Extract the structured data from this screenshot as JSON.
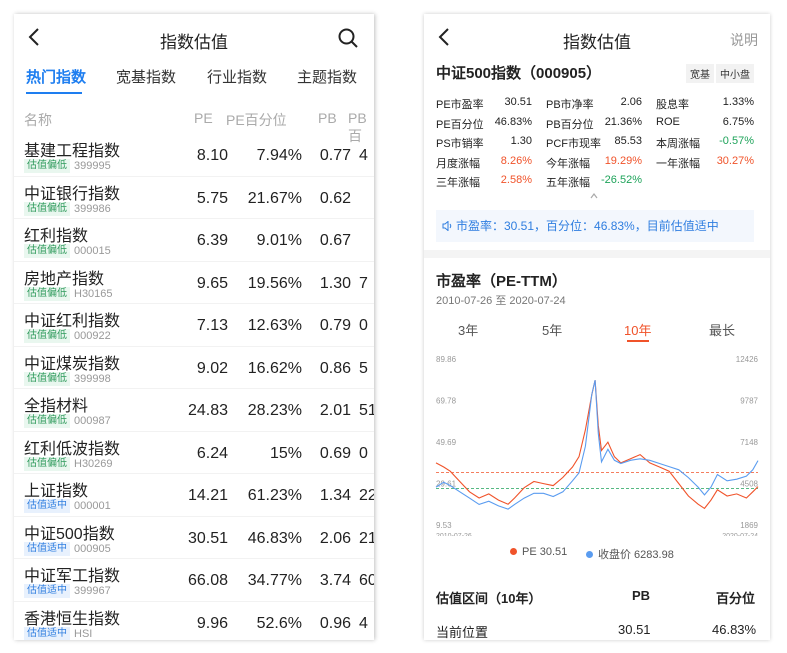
{
  "left": {
    "title": "指数估值",
    "tabs": [
      "热门指数",
      "宽基指数",
      "行业指数",
      "主题指数"
    ],
    "columns": [
      "名称",
      "PE",
      "PE百分位",
      "PB",
      "PB百"
    ],
    "rows": [
      {
        "name": "基建工程指数",
        "badge": "估值偏低",
        "level": "low",
        "code": "399995",
        "pe": "8.10",
        "pe_pct": "7.94%",
        "pb": "0.77",
        "pb_pct": "4"
      },
      {
        "name": "中证银行指数",
        "badge": "估值偏低",
        "level": "low",
        "code": "399986",
        "pe": "5.75",
        "pe_pct": "21.67%",
        "pb": "0.62",
        "pb_pct": ""
      },
      {
        "name": "红利指数",
        "badge": "估值偏低",
        "level": "low",
        "code": "000015",
        "pe": "6.39",
        "pe_pct": "9.01%",
        "pb": "0.67",
        "pb_pct": ""
      },
      {
        "name": "房地产指数",
        "badge": "估值偏低",
        "level": "low",
        "code": "H30165",
        "pe": "9.65",
        "pe_pct": "19.56%",
        "pb": "1.30",
        "pb_pct": "7"
      },
      {
        "name": "中证红利指数",
        "badge": "估值偏低",
        "level": "low",
        "code": "000922",
        "pe": "7.13",
        "pe_pct": "12.63%",
        "pb": "0.79",
        "pb_pct": "0"
      },
      {
        "name": "中证煤炭指数",
        "badge": "估值偏低",
        "level": "low",
        "code": "399998",
        "pe": "9.02",
        "pe_pct": "16.62%",
        "pb": "0.86",
        "pb_pct": "5"
      },
      {
        "name": "全指材料",
        "badge": "估值偏低",
        "level": "low",
        "code": "000987",
        "pe": "24.83",
        "pe_pct": "28.23%",
        "pb": "2.01",
        "pb_pct": "51"
      },
      {
        "name": "红利低波指数",
        "badge": "估值偏低",
        "level": "low",
        "code": "H30269",
        "pe": "6.24",
        "pe_pct": "15%",
        "pb": "0.69",
        "pb_pct": "0"
      },
      {
        "name": "上证指数",
        "badge": "估值适中",
        "level": "mid",
        "code": "000001",
        "pe": "14.21",
        "pe_pct": "61.23%",
        "pb": "1.34",
        "pb_pct": "22"
      },
      {
        "name": "中证500指数",
        "badge": "估值适中",
        "level": "mid",
        "code": "000905",
        "pe": "30.51",
        "pe_pct": "46.83%",
        "pb": "2.06",
        "pb_pct": "21"
      },
      {
        "name": "中证军工指数",
        "badge": "估值适中",
        "level": "mid",
        "code": "399967",
        "pe": "66.08",
        "pe_pct": "34.77%",
        "pb": "3.74",
        "pb_pct": "60"
      },
      {
        "name": "香港恒生指数",
        "badge": "估值适中",
        "level": "mid",
        "code": "HSI",
        "pe": "9.96",
        "pe_pct": "52.6%",
        "pb": "0.96",
        "pb_pct": "4"
      }
    ]
  },
  "right": {
    "title": "指数估值",
    "help": "说明",
    "stock_name": "中证500指数（000905）",
    "tags": [
      "宽基",
      "中小盘"
    ],
    "metrics": [
      [
        {
          "l": "PE市盈率",
          "v": "30.51",
          "c": ""
        },
        {
          "l": "PB市净率",
          "v": "2.06",
          "c": ""
        },
        {
          "l": "股息率",
          "v": "1.33%",
          "c": ""
        }
      ],
      [
        {
          "l": "PE百分位",
          "v": "46.83%",
          "c": ""
        },
        {
          "l": "PB百分位",
          "v": "21.36%",
          "c": ""
        },
        {
          "l": "ROE",
          "v": "6.75%",
          "c": ""
        }
      ],
      [
        {
          "l": "PS市销率",
          "v": "1.30",
          "c": ""
        },
        {
          "l": "PCF市现率",
          "v": "85.53",
          "c": ""
        },
        {
          "l": "本周涨幅",
          "v": "-0.57%",
          "c": "green"
        }
      ],
      [
        {
          "l": "月度涨幅",
          "v": "8.26%",
          "c": "red"
        },
        {
          "l": "今年涨幅",
          "v": "19.29%",
          "c": "red"
        },
        {
          "l": "一年涨幅",
          "v": "30.27%",
          "c": "red"
        }
      ],
      [
        {
          "l": "三年涨幅",
          "v": "2.58%",
          "c": "red"
        },
        {
          "l": "五年涨幅",
          "v": "-26.52%",
          "c": "green"
        },
        {
          "l": "",
          "v": "",
          "c": ""
        }
      ]
    ],
    "notice": "市盈率：30.51，百分位：46.83%，目前估值适中",
    "chart_title": "市盈率（PE-TTM）",
    "date_range": "2010-07-26 至 2020-07-24",
    "periods": [
      "3年",
      "5年",
      "10年",
      "最长"
    ],
    "legend": {
      "pe": "PE 30.51",
      "price": "收盘价 6283.98"
    },
    "table_head": [
      "估值区间（10年）",
      "PB",
      "百分位"
    ],
    "table_row": [
      "当前位置",
      "30.51",
      "46.83%"
    ]
  },
  "colors": {
    "accent": "#1e7ef0",
    "pe_line": "#f0532a",
    "price_line": "#5a9cf0",
    "low_badge": "#2e9a5b",
    "mid_badge": "#2f7ee0"
  },
  "chart_data": {
    "type": "line",
    "title": "市盈率（PE-TTM）",
    "x_start": "2010-07-26",
    "x_end": "2020-07-24",
    "y_left_ticks": [
      "89.86",
      "69.78",
      "49.69",
      "29.61",
      "9.53"
    ],
    "y_right_ticks": [
      "12426",
      "9787",
      "7148",
      "4508",
      "1869"
    ],
    "ylim_left": [
      9.53,
      89.86
    ],
    "ylim_right": [
      1869,
      12426
    ],
    "reference_lines": [
      37.3,
      29.6
    ],
    "series": [
      {
        "name": "PE",
        "axis": "left",
        "x": [
          2010.56,
          2010.8,
          2011.0,
          2011.3,
          2011.6,
          2011.9,
          2012.2,
          2012.5,
          2012.8,
          2013.0,
          2013.3,
          2013.6,
          2013.9,
          2014.2,
          2014.5,
          2014.8,
          2015.0,
          2015.2,
          2015.4,
          2015.5,
          2015.6,
          2015.7,
          2015.9,
          2016.1,
          2016.3,
          2016.6,
          2016.9,
          2017.2,
          2017.5,
          2017.8,
          2018.1,
          2018.4,
          2018.7,
          2018.9,
          2019.1,
          2019.3,
          2019.6,
          2019.9,
          2020.2,
          2020.4,
          2020.56
        ],
        "values": [
          42,
          40,
          38,
          33,
          28,
          25,
          27,
          24,
          22,
          25,
          30,
          33,
          32,
          31,
          35,
          40,
          45,
          58,
          75,
          82,
          60,
          48,
          52,
          45,
          42,
          44,
          46,
          42,
          40,
          38,
          32,
          26,
          22,
          20,
          24,
          29,
          26,
          27,
          25,
          28,
          30.51
        ]
      },
      {
        "name": "收盘价",
        "axis": "right",
        "x": [
          2010.56,
          2010.8,
          2011.0,
          2011.3,
          2011.6,
          2011.9,
          2012.2,
          2012.5,
          2012.8,
          2013.0,
          2013.3,
          2013.6,
          2013.9,
          2014.2,
          2014.5,
          2014.8,
          2015.0,
          2015.2,
          2015.4,
          2015.5,
          2015.6,
          2015.7,
          2015.9,
          2016.1,
          2016.3,
          2016.6,
          2016.9,
          2017.2,
          2017.5,
          2017.8,
          2018.1,
          2018.4,
          2018.7,
          2018.9,
          2019.1,
          2019.3,
          2019.6,
          2019.9,
          2020.2,
          2020.4,
          2020.56
        ],
        "values": [
          4600,
          4900,
          4700,
          4300,
          3900,
          3500,
          3700,
          3400,
          3200,
          3500,
          3900,
          4200,
          4200,
          4000,
          4300,
          5000,
          5500,
          7200,
          10500,
          11400,
          8000,
          6200,
          7000,
          6300,
          6100,
          6300,
          6400,
          6300,
          6100,
          5900,
          5700,
          5200,
          4600,
          4100,
          4600,
          5400,
          5000,
          5100,
          5300,
          5700,
          6283.98
        ]
      }
    ]
  }
}
